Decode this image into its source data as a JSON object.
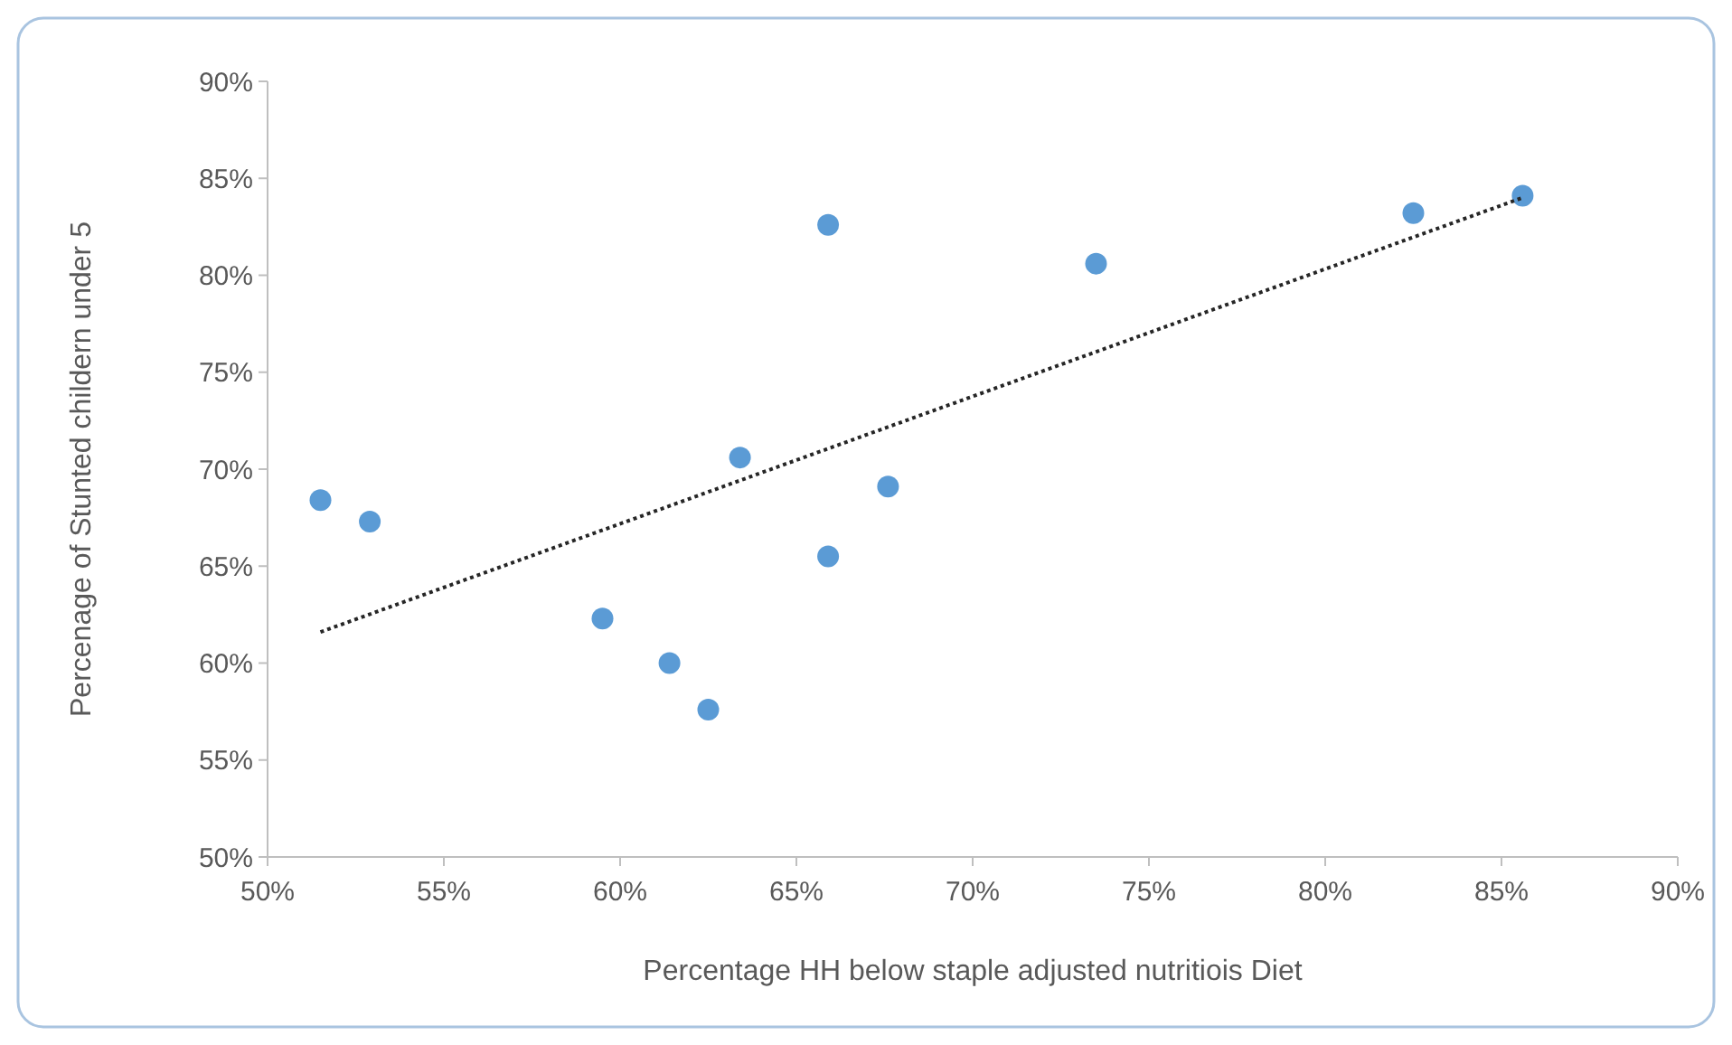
{
  "chart_data": {
    "type": "scatter",
    "xlabel": "Percentage HH below staple adjusted nutritiois Diet",
    "ylabel": "Percenage of Stunted childern under 5",
    "xlim": [
      50,
      90
    ],
    "ylim": [
      50,
      90
    ],
    "xticks": [
      {
        "value": 50,
        "label": "50%"
      },
      {
        "value": 55,
        "label": "55%"
      },
      {
        "value": 60,
        "label": "60%"
      },
      {
        "value": 65,
        "label": "65%"
      },
      {
        "value": 70,
        "label": "70%"
      },
      {
        "value": 75,
        "label": "75%"
      },
      {
        "value": 80,
        "label": "80%"
      },
      {
        "value": 85,
        "label": "85%"
      },
      {
        "value": 90,
        "label": "90%"
      }
    ],
    "yticks": [
      {
        "value": 50,
        "label": "50%"
      },
      {
        "value": 55,
        "label": "55%"
      },
      {
        "value": 60,
        "label": "60%"
      },
      {
        "value": 65,
        "label": "65%"
      },
      {
        "value": 70,
        "label": "70%"
      },
      {
        "value": 75,
        "label": "75%"
      },
      {
        "value": 80,
        "label": "80%"
      },
      {
        "value": 85,
        "label": "85%"
      },
      {
        "value": 90,
        "label": "90%"
      }
    ],
    "grid": false,
    "series": [
      {
        "color": "#5b9bd5",
        "marker": "circle",
        "x": [
          51.5,
          52.9,
          59.5,
          61.4,
          62.5,
          63.4,
          65.9,
          65.9,
          67.6,
          73.5,
          82.5,
          85.6
        ],
        "values": [
          68.4,
          67.3,
          62.3,
          60.0,
          57.6,
          70.6,
          82.6,
          65.5,
          69.1,
          80.6,
          83.2,
          84.1
        ]
      },
      {
        "type": "line",
        "color": "#262626",
        "marker": "none",
        "line_style": "dotted",
        "x": [
          51.5,
          85.6
        ],
        "values": [
          61.6,
          84.0
        ]
      }
    ]
  }
}
